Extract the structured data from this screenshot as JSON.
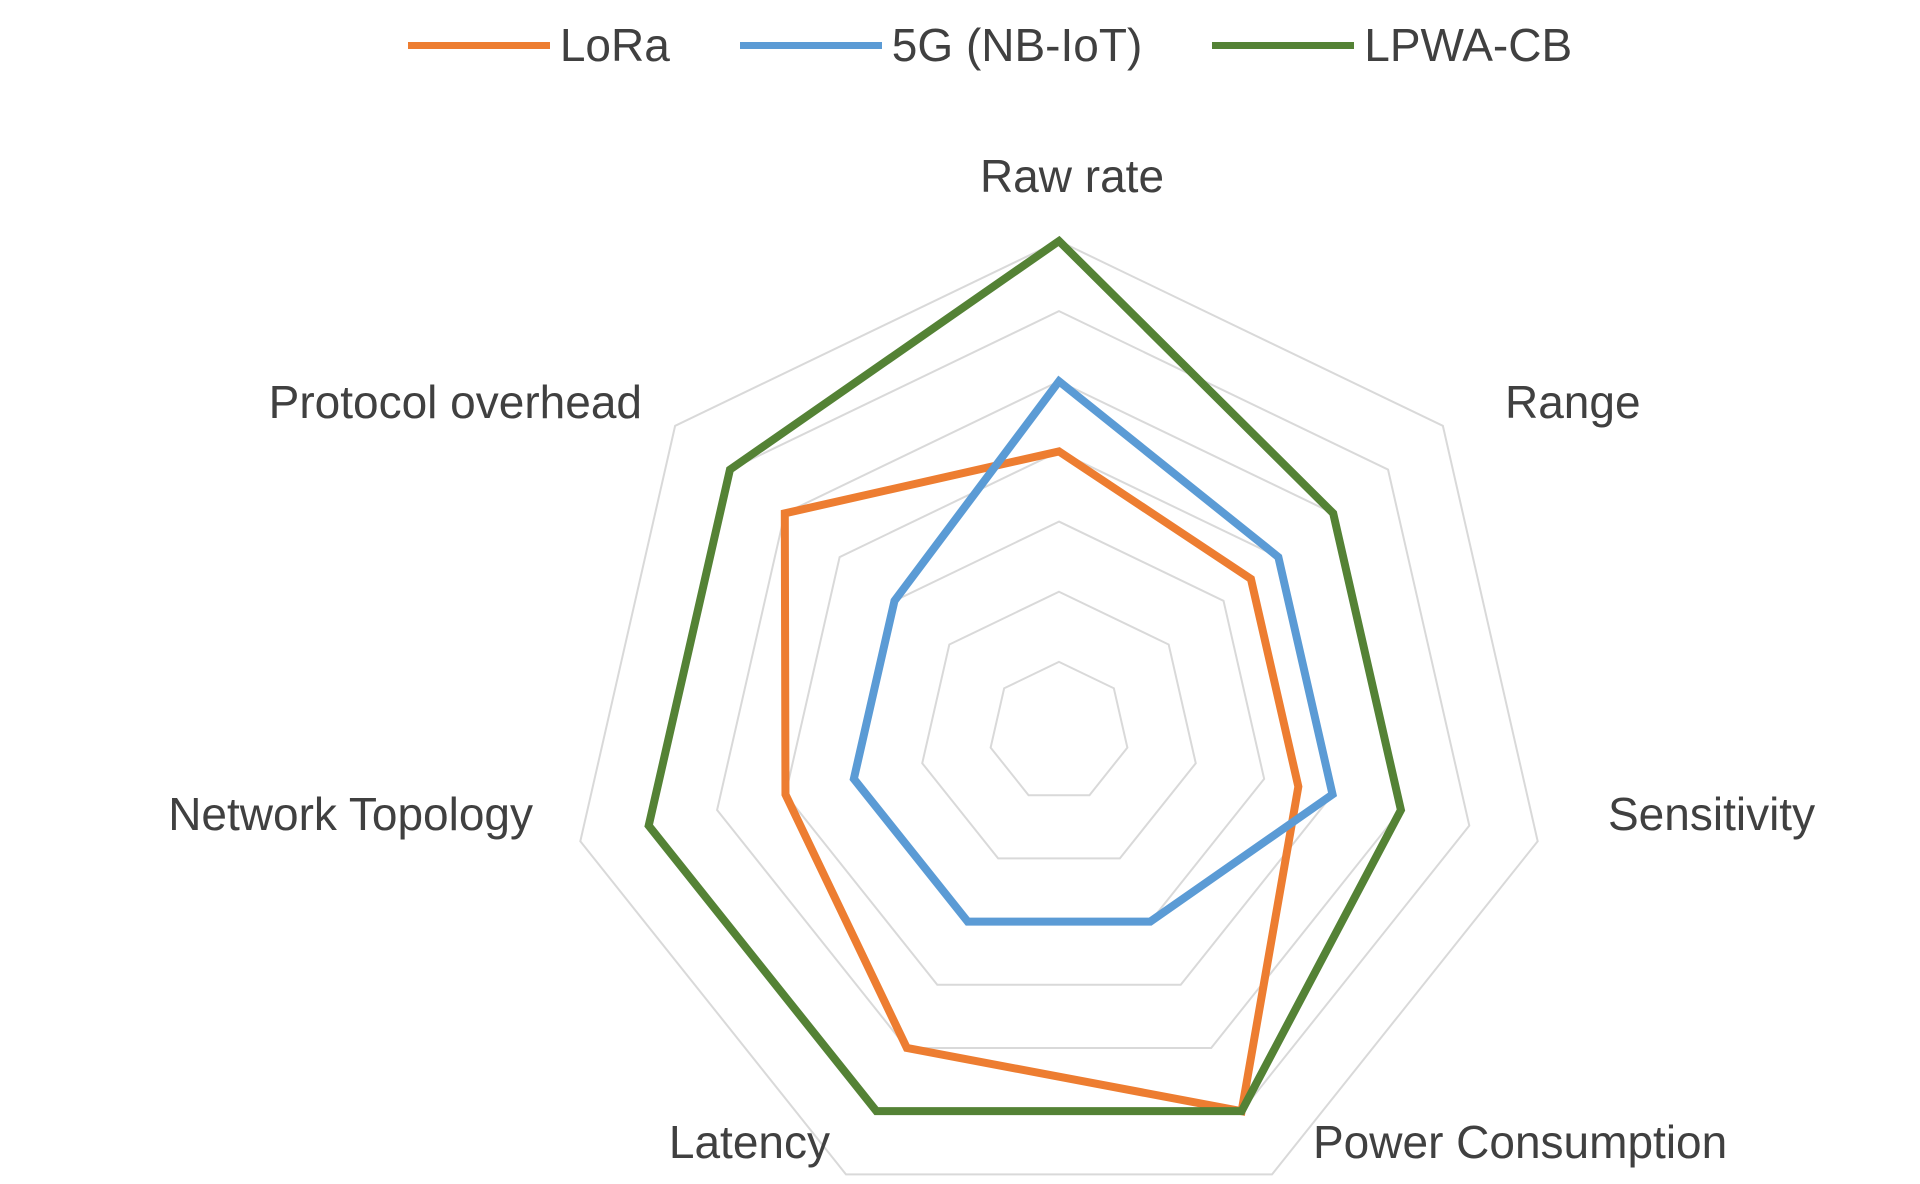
{
  "chart_data": {
    "type": "radar",
    "categories": [
      "Raw rate",
      "Range",
      "Sensitivity",
      "Power Consumption",
      "Latency",
      "Network Topology",
      "Protocol overhead"
    ],
    "series": [
      {
        "name": "LoRa",
        "color": "#ED7D31",
        "values": [
          4,
          3.5,
          3.5,
          6,
          5,
          4,
          5
        ]
      },
      {
        "name": "5G (NB-IoT)",
        "color": "#5B9BD5",
        "values": [
          5,
          4,
          4,
          3,
          3,
          3,
          3
        ]
      },
      {
        "name": "LPWA-CB",
        "color": "#548235",
        "values": [
          7,
          5,
          5,
          6,
          6,
          6,
          6
        ]
      }
    ],
    "rlim": [
      0,
      7
    ],
    "grid_step": 1,
    "grid": true,
    "grid_color": "#D9D9D9",
    "legend_position": "top"
  }
}
